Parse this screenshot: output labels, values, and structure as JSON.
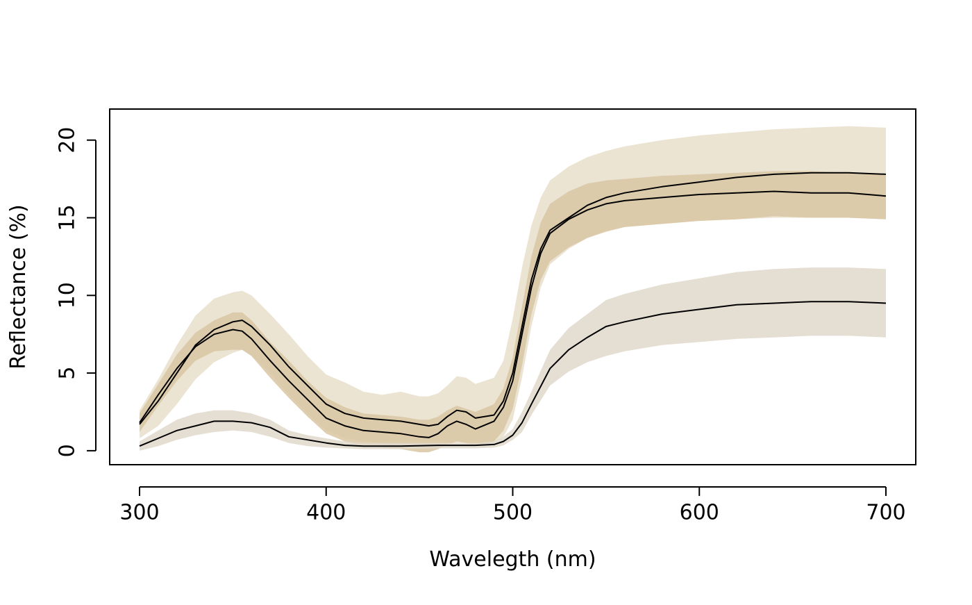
{
  "chart_data": {
    "type": "area",
    "title": "",
    "xlabel": "Wavelegth (nm)",
    "ylabel": "Reflectance (%)",
    "xlim": [
      284,
      716
    ],
    "ylim": [
      -0.9,
      22.0
    ],
    "xticks": [
      300,
      400,
      500,
      600,
      700
    ],
    "yticks": [
      0,
      5,
      10,
      15,
      20
    ],
    "grid": false,
    "legend": "none",
    "series": [
      {
        "fill_color": "#e8dfcb",
        "line_color": "#000000",
        "x": [
          300,
          310,
          320,
          330,
          340,
          350,
          355,
          360,
          370,
          380,
          390,
          400,
          410,
          420,
          430,
          440,
          450,
          455,
          460,
          465,
          470,
          475,
          480,
          490,
          495,
          500,
          505,
          510,
          515,
          520,
          530,
          540,
          550,
          560,
          580,
          600,
          620,
          640,
          660,
          680,
          700
        ],
        "mean": [
          1.7,
          3.2,
          5.0,
          6.8,
          7.8,
          8.3,
          8.4,
          8.0,
          6.8,
          5.4,
          4.2,
          3.0,
          2.4,
          2.1,
          2.0,
          1.9,
          1.7,
          1.6,
          1.7,
          2.2,
          2.6,
          2.5,
          2.1,
          2.3,
          3.2,
          5.0,
          8.0,
          11.0,
          13.0,
          14.2,
          15.0,
          15.8,
          16.3,
          16.6,
          17.0,
          17.3,
          17.6,
          17.8,
          17.9,
          17.9,
          17.8
        ],
        "lower": [
          0.8,
          1.6,
          3.0,
          4.6,
          5.7,
          6.3,
          6.5,
          6.1,
          5.0,
          3.6,
          2.4,
          1.3,
          0.8,
          0.6,
          0.5,
          0.4,
          0.3,
          0.3,
          0.3,
          0.4,
          0.5,
          0.5,
          0.4,
          0.5,
          0.9,
          2.0,
          4.7,
          8.0,
          10.5,
          12.0,
          13.0,
          13.7,
          14.2,
          14.4,
          14.6,
          14.8,
          14.9,
          15.0,
          15.0,
          15.0,
          14.9
        ],
        "upper": [
          2.6,
          4.6,
          6.8,
          8.7,
          9.8,
          10.2,
          10.3,
          10.0,
          8.8,
          7.5,
          6.1,
          4.9,
          4.4,
          3.8,
          3.6,
          3.8,
          3.5,
          3.5,
          3.7,
          4.2,
          4.8,
          4.7,
          4.3,
          4.7,
          5.8,
          8.5,
          11.8,
          14.5,
          16.3,
          17.4,
          18.3,
          18.9,
          19.3,
          19.6,
          20.0,
          20.3,
          20.5,
          20.7,
          20.8,
          20.9,
          20.8
        ]
      },
      {
        "fill_color": "#d9c7a2",
        "line_color": "#000000",
        "x": [
          300,
          310,
          320,
          330,
          340,
          350,
          355,
          360,
          370,
          380,
          390,
          400,
          410,
          420,
          430,
          440,
          450,
          455,
          460,
          465,
          470,
          475,
          480,
          490,
          495,
          500,
          505,
          510,
          515,
          520,
          530,
          540,
          550,
          560,
          580,
          600,
          620,
          640,
          660,
          680,
          700
        ],
        "mean": [
          1.8,
          3.6,
          5.3,
          6.7,
          7.5,
          7.8,
          7.7,
          7.2,
          5.8,
          4.5,
          3.3,
          2.1,
          1.6,
          1.3,
          1.2,
          1.1,
          0.9,
          0.85,
          1.1,
          1.6,
          1.9,
          1.7,
          1.4,
          1.9,
          2.8,
          4.5,
          7.5,
          10.5,
          12.7,
          14.0,
          14.9,
          15.5,
          15.9,
          16.1,
          16.3,
          16.5,
          16.6,
          16.7,
          16.6,
          16.6,
          16.4
        ],
        "lower": [
          1.2,
          2.9,
          4.5,
          5.8,
          6.4,
          6.5,
          6.5,
          6.1,
          4.7,
          3.4,
          2.2,
          1.1,
          0.6,
          0.3,
          0.2,
          0.1,
          -0.1,
          -0.1,
          0.1,
          0.4,
          0.6,
          0.5,
          0.3,
          0.6,
          1.3,
          2.7,
          5.5,
          8.8,
          11.0,
          12.2,
          13.1,
          13.7,
          14.1,
          14.4,
          14.6,
          14.8,
          14.9,
          15.1,
          15.0,
          15.0,
          14.9
        ],
        "upper": [
          2.4,
          4.3,
          6.2,
          7.6,
          8.4,
          8.9,
          8.9,
          8.4,
          7.0,
          5.8,
          4.5,
          3.4,
          2.8,
          2.4,
          2.3,
          2.2,
          2.0,
          2.0,
          2.2,
          2.6,
          2.9,
          2.7,
          2.5,
          3.0,
          4.0,
          6.0,
          9.3,
          12.5,
          14.7,
          15.9,
          16.7,
          17.2,
          17.4,
          17.5,
          17.7,
          17.8,
          17.9,
          18.0,
          18.0,
          17.9,
          17.8
        ]
      },
      {
        "fill_color": "#e0d8cb",
        "line_color": "#000000",
        "x": [
          300,
          310,
          320,
          330,
          340,
          350,
          360,
          370,
          380,
          390,
          400,
          410,
          420,
          440,
          460,
          480,
          490,
          495,
          500,
          505,
          510,
          520,
          530,
          540,
          550,
          560,
          580,
          600,
          620,
          640,
          660,
          680,
          700
        ],
        "mean": [
          0.3,
          0.8,
          1.3,
          1.6,
          1.9,
          1.9,
          1.8,
          1.5,
          0.9,
          0.7,
          0.5,
          0.35,
          0.3,
          0.3,
          0.35,
          0.35,
          0.4,
          0.6,
          1.0,
          1.8,
          3.0,
          5.3,
          6.5,
          7.3,
          8.0,
          8.3,
          8.8,
          9.1,
          9.4,
          9.5,
          9.6,
          9.6,
          9.5
        ],
        "lower": [
          0.0,
          0.3,
          0.7,
          1.0,
          1.2,
          1.3,
          1.2,
          0.9,
          0.5,
          0.3,
          0.2,
          0.15,
          0.1,
          0.1,
          0.15,
          0.15,
          0.2,
          0.35,
          0.7,
          1.2,
          2.3,
          4.2,
          5.1,
          5.7,
          6.1,
          6.4,
          6.8,
          7.0,
          7.2,
          7.3,
          7.4,
          7.4,
          7.3
        ],
        "upper": [
          0.6,
          1.3,
          2.0,
          2.4,
          2.6,
          2.6,
          2.4,
          2.0,
          1.3,
          1.0,
          0.8,
          0.6,
          0.5,
          0.5,
          0.5,
          0.5,
          0.6,
          0.9,
          1.4,
          2.5,
          3.8,
          6.5,
          7.9,
          8.8,
          9.7,
          10.1,
          10.7,
          11.1,
          11.5,
          11.7,
          11.8,
          11.8,
          11.7
        ]
      }
    ]
  }
}
